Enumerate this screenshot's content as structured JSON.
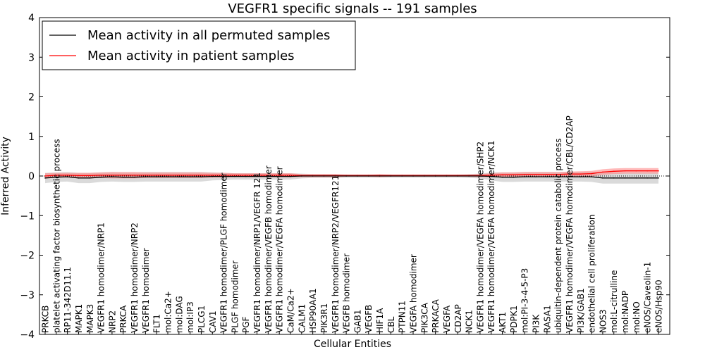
{
  "chart_data": {
    "type": "line",
    "title": "VEGFR1 specific signals -- 191 samples",
    "xlabel": "Cellular Entities",
    "ylabel": "Inferred Activity",
    "ylim": [
      -4,
      4
    ],
    "yticks": [
      "−4",
      "−3",
      "−2",
      "−1",
      "0",
      "1",
      "2",
      "3",
      "4"
    ],
    "grid": false,
    "legend_position": "top-left",
    "categories": [
      "PRKCB",
      "platelet activating factor biosynthetic process",
      "RP11-342D11.1",
      "MAPK1",
      "MAPK3",
      "VEGFR1 homodimer/NRP1",
      "NRP2",
      "PRKCA",
      "VEGFR1 homodimer/NRP2",
      "VEGFR1 homodimer",
      "FLT1",
      "mol:Ca2+",
      "mol:DAG",
      "mol:IP3",
      "PLCG1",
      "CAV1",
      "VEGFR1 homodimer/PLGF homodimer",
      "PLGF homodimer",
      "PGF",
      "VEGFR1 homodimer/NRP1/VEGFR 121",
      "VEGFR1 homodimer/VEGFB homodimer",
      "VEGFR1 homodimer/VEGFA homodimer",
      "CaM/Ca2+",
      "CALM1",
      "HSP90AA1",
      "PIK3R1",
      "VEGFR1 homodimer/NRP2/VEGFR121",
      "VEGFB homodimer",
      "GAB1",
      "VEGFB",
      "HIF1A",
      "CBL",
      "PTPN11",
      "VEGFA homodimer",
      "PIK3CA",
      "PRKACA",
      "VEGFA",
      "CD2AP",
      "NCK1",
      "VEGFR1 homodimer/VEGFA homodimer/SHP2",
      "VEGFR1 homodimer/VEGFA homodimer/NCK1",
      "AKT1",
      "PDPK1",
      "mol:PI-3-4-5-P3",
      "PI3K",
      "RASA1",
      "ubiquitin-dependent protein catabolic process",
      "VEGFR1 homodimer/VEGFA homodimer/CBL/CD2AP",
      "PI3K/GAB1",
      "endothelial cell proliferation",
      "NOS3",
      "mol:L-citrulline",
      "mol:NADP",
      "mol:NO",
      "eNOS/Caveolin-1",
      "eNOS/Hsp90"
    ],
    "series": [
      {
        "name": "Mean activity in all permuted samples",
        "color": "#000000",
        "values": [
          -0.05,
          -0.03,
          -0.02,
          -0.05,
          -0.05,
          -0.03,
          -0.02,
          -0.03,
          -0.03,
          -0.02,
          -0.02,
          -0.02,
          -0.02,
          -0.02,
          -0.02,
          -0.01,
          -0.01,
          -0.01,
          -0.01,
          -0.01,
          -0.01,
          -0.01,
          -0.01,
          0.0,
          0.0,
          0.0,
          0.0,
          0.0,
          0.0,
          0.0,
          0.0,
          0.0,
          0.0,
          0.0,
          0.0,
          0.0,
          0.0,
          0.0,
          0.0,
          0.0,
          -0.01,
          -0.03,
          -0.03,
          -0.02,
          -0.02,
          -0.02,
          -0.02,
          -0.02,
          -0.02,
          -0.02,
          -0.05,
          -0.05,
          -0.05,
          -0.05,
          -0.05,
          -0.05
        ],
        "band": [
          0.13,
          0.12,
          0.12,
          0.13,
          0.13,
          0.12,
          0.12,
          0.12,
          0.12,
          0.12,
          0.12,
          0.12,
          0.12,
          0.12,
          0.12,
          0.1,
          0.09,
          0.08,
          0.08,
          0.08,
          0.08,
          0.08,
          0.08,
          0.06,
          0.05,
          0.05,
          0.05,
          0.04,
          0.04,
          0.04,
          0.04,
          0.04,
          0.04,
          0.04,
          0.04,
          0.04,
          0.04,
          0.04,
          0.05,
          0.06,
          0.1,
          0.12,
          0.12,
          0.12,
          0.12,
          0.12,
          0.12,
          0.12,
          0.12,
          0.13,
          0.14,
          0.14,
          0.14,
          0.14,
          0.14,
          0.14
        ]
      },
      {
        "name": "Mean activity in patient samples",
        "color": "#ff0000",
        "band_color": "#ff8080",
        "values": [
          0.0,
          0.02,
          0.02,
          0.01,
          0.01,
          0.02,
          0.02,
          0.02,
          0.02,
          0.02,
          0.02,
          0.02,
          0.02,
          0.02,
          0.02,
          0.02,
          0.02,
          0.02,
          0.02,
          0.02,
          0.02,
          0.02,
          0.02,
          0.01,
          0.01,
          0.01,
          0.01,
          0.01,
          0.01,
          0.01,
          0.01,
          0.01,
          0.01,
          0.01,
          0.01,
          0.01,
          0.01,
          0.01,
          0.01,
          0.01,
          0.02,
          0.03,
          0.03,
          0.04,
          0.04,
          0.04,
          0.04,
          0.05,
          0.05,
          0.06,
          0.1,
          0.12,
          0.13,
          0.13,
          0.13,
          0.13
        ],
        "band": [
          0.07,
          0.06,
          0.06,
          0.07,
          0.07,
          0.07,
          0.08,
          0.08,
          0.08,
          0.07,
          0.07,
          0.07,
          0.07,
          0.07,
          0.07,
          0.06,
          0.06,
          0.05,
          0.05,
          0.05,
          0.05,
          0.05,
          0.05,
          0.04,
          0.04,
          0.04,
          0.04,
          0.03,
          0.03,
          0.03,
          0.04,
          0.03,
          0.03,
          0.03,
          0.03,
          0.03,
          0.03,
          0.03,
          0.03,
          0.04,
          0.05,
          0.06,
          0.06,
          0.06,
          0.06,
          0.06,
          0.06,
          0.06,
          0.07,
          0.07,
          0.07,
          0.07,
          0.07,
          0.07,
          0.07,
          0.07
        ]
      }
    ]
  }
}
